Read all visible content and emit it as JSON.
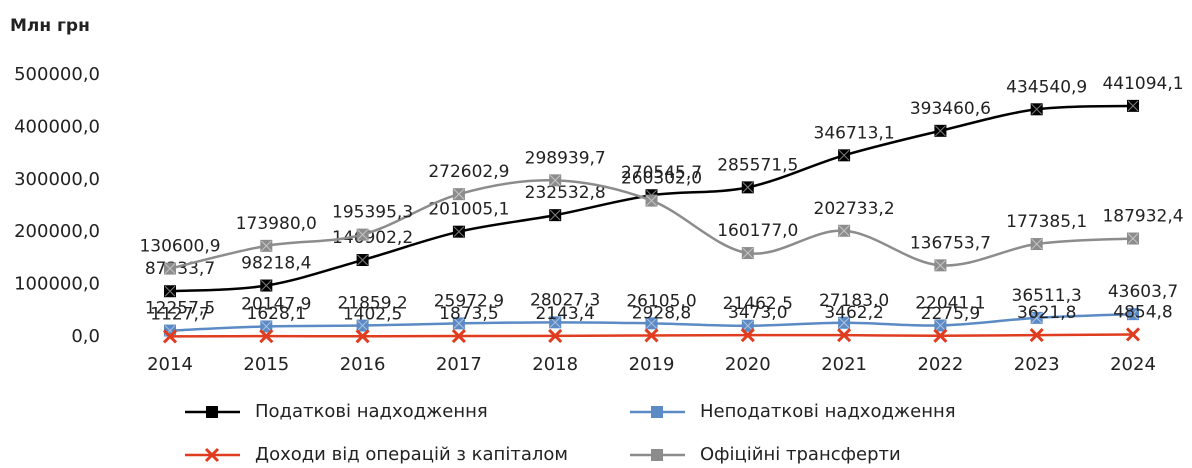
{
  "chart_data": {
    "type": "line",
    "y_axis_label": "Млн грн",
    "categories": [
      "2014",
      "2015",
      "2016",
      "2017",
      "2018",
      "2019",
      "2020",
      "2021",
      "2022",
      "2023",
      "2024"
    ],
    "ylim": [
      0,
      500000
    ],
    "yticks": [
      {
        "value": 0,
        "label": "0,0"
      },
      {
        "value": 100000,
        "label": "100000,0"
      },
      {
        "value": 200000,
        "label": "200000,0"
      },
      {
        "value": 300000,
        "label": "300000,0"
      },
      {
        "value": 400000,
        "label": "400000,0"
      },
      {
        "value": 500000,
        "label": "500000,0"
      }
    ],
    "legend": "bottom",
    "series": [
      {
        "name": "Податкові надходження",
        "color": "#000000",
        "marker": "square",
        "values": [
          87333.7,
          98218.4,
          146902.2,
          201005.1,
          232532.8,
          270545.7,
          285571.5,
          346713.1,
          393460.6,
          434540.9,
          441094.1
        ],
        "value_labels": [
          "87333,7",
          "98218,4",
          "146902,2",
          "201005,1",
          "232532,8",
          "270545,7",
          "285571,5",
          "346713,1",
          "393460,6",
          "434540,9",
          "441094,1"
        ]
      },
      {
        "name": "Неподаткові надходження",
        "color": "#5b8ac4",
        "marker": "square",
        "values": [
          12257.5,
          20147.9,
          21859.2,
          25972.9,
          28027.3,
          26105.0,
          21462.5,
          27183.0,
          22041.1,
          36511.3,
          43603.7
        ],
        "value_labels": [
          "12257,5",
          "20147,9",
          "21859,2",
          "25972,9",
          "28027,3",
          "26105,0",
          "21462,5",
          "27183,0",
          "22041,1",
          "36511,3",
          "43603,7"
        ]
      },
      {
        "name": "Доходи від операцій з капіталом",
        "color": "#e03c1f",
        "marker": "x",
        "values": [
          1127.7,
          1628.1,
          1402.5,
          1873.5,
          2143.4,
          2928.8,
          3473.0,
          3462.2,
          2275.9,
          3621.8,
          4854.8
        ],
        "value_labels": [
          "1127,7",
          "1628,1",
          "1402,5",
          "1873,5",
          "2143,4",
          "2928,8",
          "3473,0",
          "3462,2",
          "2275,9",
          "3621,8",
          "4854,8"
        ]
      },
      {
        "name": "Офіційні трансферти",
        "color": "#8c8c8c",
        "marker": "square",
        "values": [
          130600.9,
          173980.0,
          195395.3,
          272602.9,
          298939.7,
          260302.0,
          160177.0,
          202733.2,
          136753.7,
          177385.1,
          187932.4
        ],
        "value_labels": [
          "130600,9",
          "173980,0",
          "195395,3",
          "272602,9",
          "298939,7",
          "260302,0",
          "160177,0",
          "202733,2",
          "136753,7",
          "177385,1",
          "187932,4"
        ]
      }
    ]
  }
}
